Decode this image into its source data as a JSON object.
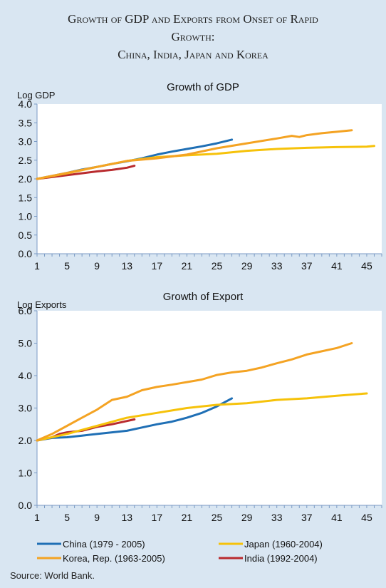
{
  "figure": {
    "title_lines": [
      "Growth of GDP and Exports from Onset of Rapid",
      "Growth:",
      "China, India, Japan and Korea"
    ],
    "source": "Source: World Bank."
  },
  "colors": {
    "china": "#1f6fb5",
    "japan": "#f6c20a",
    "korea": "#f4a323",
    "india": "#b92b2e"
  },
  "legend": [
    {
      "key": "china",
      "label": "China (1979 - 2005)"
    },
    {
      "key": "japan",
      "label": "Japan (1960-2004)"
    },
    {
      "key": "korea",
      "label": "Korea, Rep. (1963-2005)"
    },
    {
      "key": "india",
      "label": "India (1992-2004)"
    }
  ],
  "chart_data": [
    {
      "type": "line",
      "title": "Growth of GDP",
      "xlabel": "",
      "ylabel": "Log GDP",
      "xlim": [
        1,
        47
      ],
      "ylim": [
        0,
        4
      ],
      "y_ticks": [
        "0.0",
        "0.5",
        "1.0",
        "1.5",
        "2.0",
        "2.5",
        "3.0",
        "3.5",
        "4.0"
      ],
      "x_ticks": [
        1,
        5,
        9,
        13,
        17,
        21,
        25,
        29,
        33,
        37,
        41,
        45
      ],
      "grid": false,
      "series": [
        {
          "key": "china",
          "x": [
            1,
            3,
            5,
            7,
            9,
            11,
            13,
            15,
            17,
            19,
            21,
            23,
            25,
            27
          ],
          "y": [
            2.0,
            2.08,
            2.16,
            2.25,
            2.32,
            2.4,
            2.47,
            2.55,
            2.65,
            2.73,
            2.8,
            2.87,
            2.95,
            3.05
          ]
        },
        {
          "key": "india",
          "x": [
            1,
            3,
            5,
            7,
            9,
            11,
            13,
            14
          ],
          "y": [
            2.0,
            2.05,
            2.1,
            2.15,
            2.2,
            2.24,
            2.3,
            2.35
          ]
        },
        {
          "key": "japan",
          "x": [
            1,
            5,
            9,
            13,
            17,
            21,
            25,
            29,
            33,
            37,
            41,
            45,
            46
          ],
          "y": [
            2.0,
            2.15,
            2.32,
            2.48,
            2.58,
            2.63,
            2.67,
            2.75,
            2.8,
            2.83,
            2.85,
            2.86,
            2.88
          ]
        },
        {
          "key": "korea",
          "x": [
            1,
            5,
            9,
            13,
            17,
            21,
            25,
            29,
            33,
            35,
            36,
            37,
            39,
            41,
            43
          ],
          "y": [
            2.0,
            2.16,
            2.32,
            2.48,
            2.55,
            2.65,
            2.82,
            2.95,
            3.08,
            3.15,
            3.12,
            3.17,
            3.22,
            3.26,
            3.3
          ]
        }
      ]
    },
    {
      "type": "line",
      "title": "Growth of Export",
      "xlabel": "",
      "ylabel": "Log Exports",
      "xlim": [
        1,
        47
      ],
      "ylim": [
        0,
        6
      ],
      "y_ticks": [
        "0.0",
        "1.0",
        "2.0",
        "3.0",
        "4.0",
        "5.0",
        "6.0"
      ],
      "x_ticks": [
        1,
        5,
        9,
        13,
        17,
        21,
        25,
        29,
        33,
        37,
        41,
        45
      ],
      "grid": false,
      "series": [
        {
          "key": "china",
          "x": [
            1,
            3,
            5,
            7,
            9,
            11,
            13,
            15,
            17,
            19,
            21,
            23,
            25,
            27
          ],
          "y": [
            2.0,
            2.08,
            2.1,
            2.15,
            2.2,
            2.25,
            2.3,
            2.4,
            2.5,
            2.58,
            2.7,
            2.85,
            3.05,
            3.3
          ]
        },
        {
          "key": "india",
          "x": [
            1,
            3,
            4,
            5,
            7,
            9,
            11,
            13,
            14
          ],
          "y": [
            2.0,
            2.1,
            2.2,
            2.25,
            2.3,
            2.42,
            2.5,
            2.6,
            2.65
          ]
        },
        {
          "key": "japan",
          "x": [
            1,
            5,
            9,
            13,
            17,
            21,
            25,
            29,
            33,
            37,
            41,
            45
          ],
          "y": [
            2.0,
            2.2,
            2.45,
            2.7,
            2.85,
            3.0,
            3.1,
            3.15,
            3.25,
            3.3,
            3.38,
            3.45
          ]
        },
        {
          "key": "korea",
          "x": [
            1,
            3,
            5,
            7,
            9,
            11,
            13,
            15,
            17,
            19,
            21,
            23,
            25,
            27,
            29,
            31,
            33,
            35,
            37,
            39,
            41,
            43
          ],
          "y": [
            2.0,
            2.2,
            2.45,
            2.7,
            2.95,
            3.25,
            3.35,
            3.55,
            3.65,
            3.72,
            3.8,
            3.88,
            4.02,
            4.1,
            4.15,
            4.25,
            4.38,
            4.5,
            4.65,
            4.75,
            4.85,
            5.0
          ]
        }
      ]
    }
  ]
}
